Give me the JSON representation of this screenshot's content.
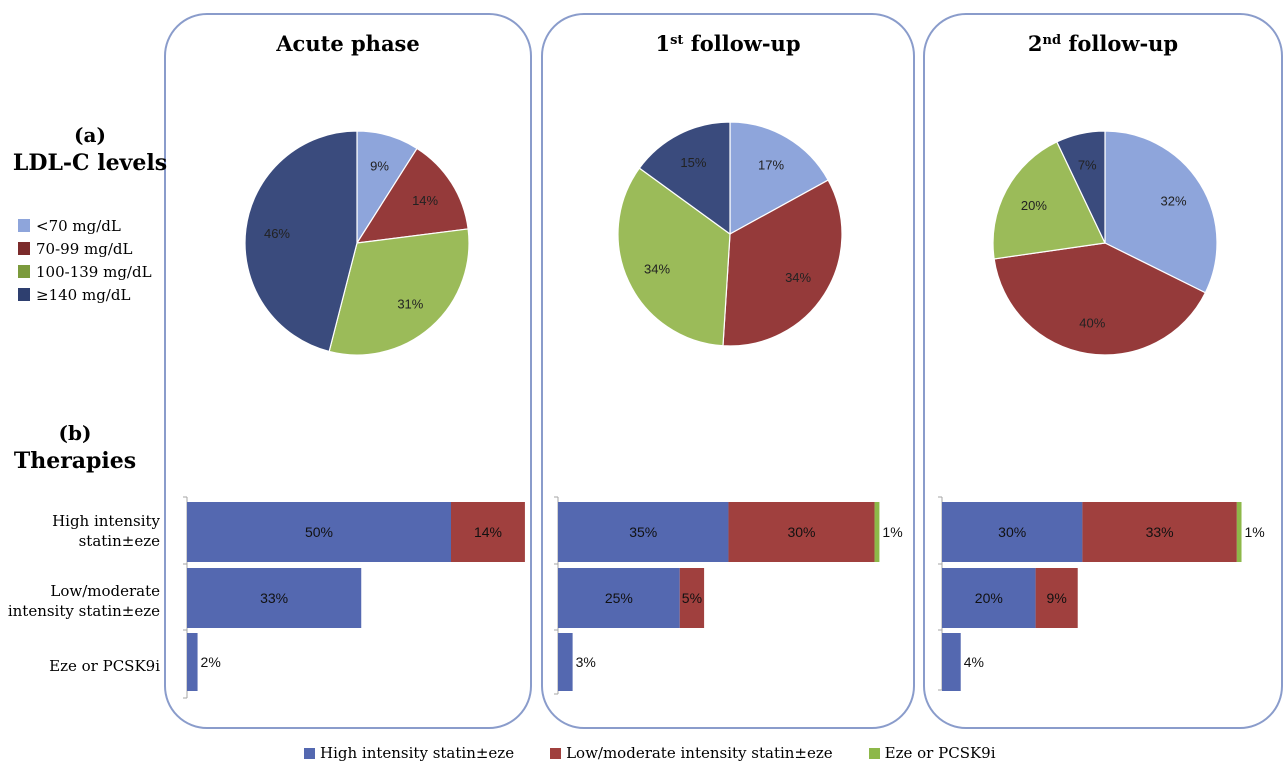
{
  "panels": [
    {
      "title_main": "Acute phase",
      "title_sup": ""
    },
    {
      "title_main": "1",
      "title_sup": "st",
      "title_rest": " follow-up"
    },
    {
      "title_main": "2",
      "title_sup": "nd",
      "title_rest": " follow-up"
    }
  ],
  "sections": {
    "a_letter": "(a)",
    "a_title": "LDL-C levels",
    "b_letter": "(b)",
    "b_title": "Therapies"
  },
  "ldl_legend": [
    {
      "label": "<70 mg/dL",
      "color": "#8EA5DB"
    },
    {
      "label": "70-99 mg/dL",
      "color": "#7B2B2B"
    },
    {
      "label": "100-139 mg/dL",
      "color": "#7B9A3C"
    },
    {
      "label": "≥140 mg/dL",
      "color": "#2E3F6F"
    }
  ],
  "therapy_categories": [
    {
      "line1": "High intensity",
      "line2": "statin±eze"
    },
    {
      "line1": "Low/moderate",
      "line2": "intensity statin±eze"
    },
    {
      "line1": "Eze or PCSK9i",
      "line2": ""
    }
  ],
  "bottom_legend": [
    {
      "label": "High intensity statin±eze",
      "color": "#5468B0"
    },
    {
      "label": "Low/moderate intensity statin±eze",
      "color": "#A0403E"
    },
    {
      "label": "Eze or PCSK9i",
      "color": "#8DB849"
    }
  ],
  "chart_data": [
    {
      "type": "pie",
      "title": "Acute phase",
      "categories": [
        "<70 mg/dL",
        "70-99 mg/dL",
        "100-139 mg/dL",
        "≥140 mg/dL"
      ],
      "values": [
        9,
        14,
        31,
        46
      ],
      "labels": [
        "9%",
        "14%",
        "31%",
        "46%"
      ],
      "colors": [
        "#8EA5DB",
        "#953A3A",
        "#9BBB59",
        "#3A4B7D"
      ]
    },
    {
      "type": "pie",
      "title": "1st follow-up",
      "categories": [
        "<70 mg/dL",
        "70-99 mg/dL",
        "100-139 mg/dL",
        "≥140 mg/dL"
      ],
      "values": [
        17,
        34,
        34,
        15
      ],
      "labels": [
        "17%",
        "34%",
        "34%",
        "15%"
      ],
      "colors": [
        "#8EA5DB",
        "#953A3A",
        "#9BBB59",
        "#3A4B7D"
      ]
    },
    {
      "type": "pie",
      "title": "2nd follow-up",
      "categories": [
        "<70 mg/dL",
        "70-99 mg/dL",
        "100-139 mg/dL",
        "≥140 mg/dL"
      ],
      "values": [
        32,
        40,
        20,
        7
      ],
      "labels": [
        "32%",
        "40%",
        "20%",
        "7%"
      ],
      "colors": [
        "#8EA5DB",
        "#953A3A",
        "#9BBB59",
        "#3A4B7D"
      ]
    },
    {
      "type": "bar",
      "orientation": "horizontal",
      "stacked": true,
      "title": "Acute phase",
      "categories": [
        "High intensity statin±eze",
        "Low/moderate intensity statin±eze",
        "Eze or PCSK9i"
      ],
      "series": [
        {
          "name": "High intensity statin±eze",
          "values": [
            50,
            33,
            2
          ],
          "labels": [
            "50%",
            "33%",
            "2%"
          ]
        },
        {
          "name": "Low/moderate intensity statin±eze",
          "values": [
            14,
            0,
            0
          ],
          "labels": [
            "14%",
            "",
            ""
          ]
        },
        {
          "name": "Eze or PCSK9i",
          "values": [
            0,
            0,
            0
          ],
          "labels": [
            "",
            "",
            ""
          ]
        }
      ]
    },
    {
      "type": "bar",
      "orientation": "horizontal",
      "stacked": true,
      "title": "1st follow-up",
      "categories": [
        "High intensity statin±eze",
        "Low/moderate intensity statin±eze",
        "Eze or PCSK9i"
      ],
      "series": [
        {
          "name": "High intensity statin±eze",
          "values": [
            35,
            25,
            3
          ],
          "labels": [
            "35%",
            "25%",
            "3%"
          ]
        },
        {
          "name": "Low/moderate intensity statin±eze",
          "values": [
            30,
            5,
            0
          ],
          "labels": [
            "30%",
            "5%",
            ""
          ]
        },
        {
          "name": "Eze or PCSK9i",
          "values": [
            1,
            0,
            0
          ],
          "labels": [
            "1%",
            "",
            ""
          ]
        }
      ]
    },
    {
      "type": "bar",
      "orientation": "horizontal",
      "stacked": true,
      "title": "2nd follow-up",
      "categories": [
        "High intensity statin±eze",
        "Low/moderate intensity statin±eze",
        "Eze or PCSK9i"
      ],
      "series": [
        {
          "name": "High intensity statin±eze",
          "values": [
            30,
            20,
            4
          ],
          "labels": [
            "30%",
            "20%",
            "4%"
          ]
        },
        {
          "name": "Low/moderate intensity statin±eze",
          "values": [
            33,
            9,
            0
          ],
          "labels": [
            "33%",
            "9%",
            ""
          ]
        },
        {
          "name": "Eze or PCSK9i",
          "values": [
            1,
            0,
            0
          ],
          "labels": [
            "1%",
            "",
            ""
          ]
        }
      ]
    }
  ]
}
